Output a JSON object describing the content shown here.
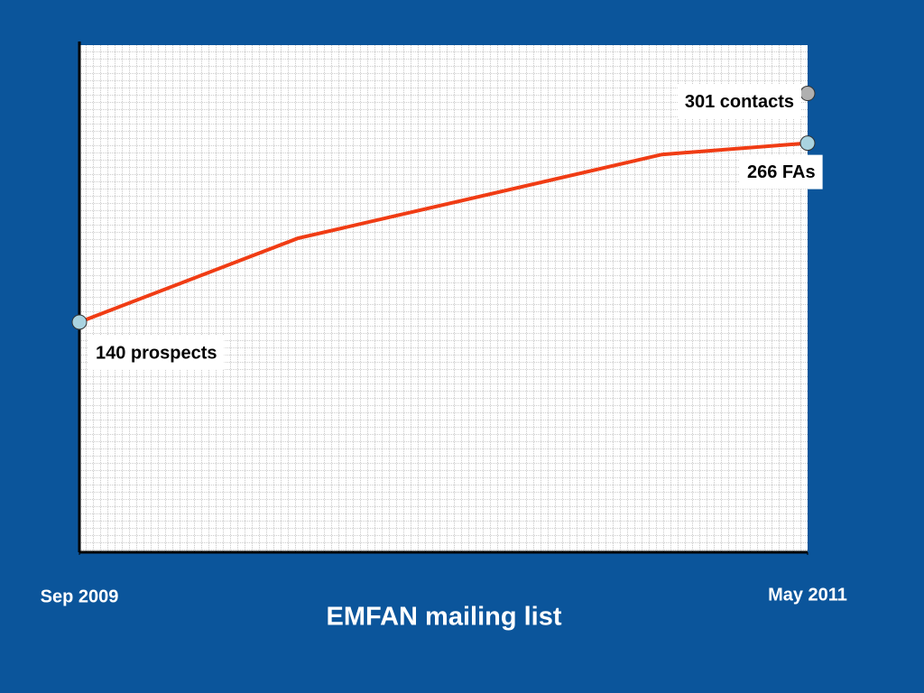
{
  "chart_data": {
    "type": "line",
    "title": "EMFAN mailing list",
    "x": [
      "2009-09",
      "2010-03",
      "2011-01",
      "2011-05"
    ],
    "xlim": [
      "2009-09",
      "2011-05"
    ],
    "xticks": [
      {
        "value": "2009-09",
        "label": "Sep 2009"
      },
      {
        "value": "2011-05",
        "label": "May 2011"
      }
    ],
    "ylim": [
      -22,
      335
    ],
    "grid": true,
    "series": [
      {
        "color": "#f03c14",
        "values": [
          140,
          199,
          258,
          266
        ],
        "value_labels": [
          "140 prospects",
          null,
          null,
          "266 FAs"
        ]
      },
      {
        "color": "#b0b0b0",
        "values": [
          null,
          null,
          null,
          301
        ],
        "value_labels": [
          null,
          null,
          null,
          "301 contacts"
        ]
      }
    ]
  }
}
